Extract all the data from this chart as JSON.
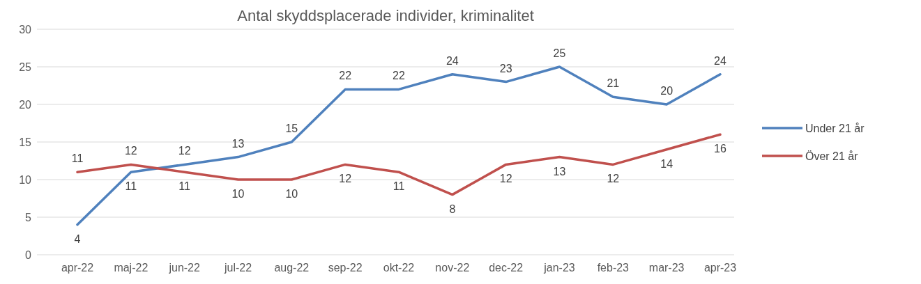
{
  "chart_data": {
    "type": "line",
    "title": "Antal skyddsplacerade individer, kriminalitet",
    "categories": [
      "apr-22",
      "maj-22",
      "jun-22",
      "jul-22",
      "aug-22",
      "sep-22",
      "okt-22",
      "nov-22",
      "dec-22",
      "jan-23",
      "feb-23",
      "mar-23",
      "apr-23"
    ],
    "series": [
      {
        "name": "Under 21 år",
        "color": "#4f81bd",
        "values": [
          4,
          11,
          12,
          13,
          15,
          22,
          22,
          24,
          23,
          25,
          21,
          20,
          24
        ]
      },
      {
        "name": "Över 21 år",
        "color": "#c0504d",
        "values": [
          11,
          12,
          11,
          10,
          10,
          12,
          11,
          8,
          12,
          13,
          12,
          14,
          16
        ]
      }
    ],
    "ylim": [
      0,
      30
    ],
    "yticks": [
      0,
      5,
      10,
      15,
      20,
      25,
      30
    ],
    "grid": "y",
    "legend": "right",
    "data_labels": true,
    "marker": "none",
    "line_style": "solid"
  }
}
